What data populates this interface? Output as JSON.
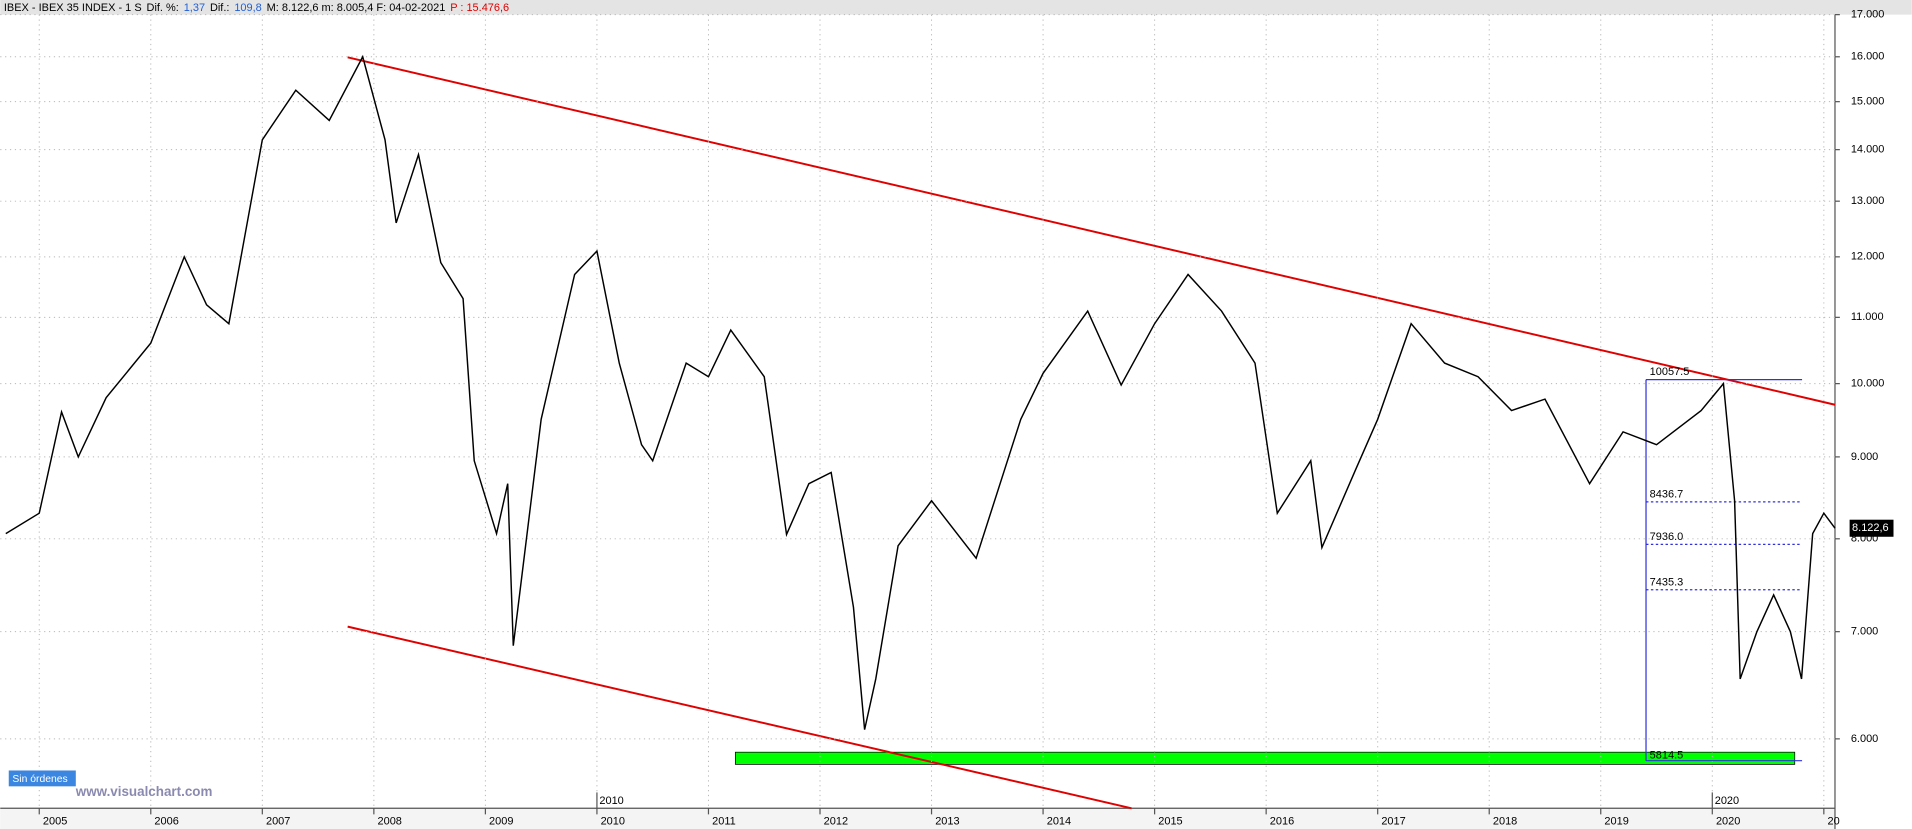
{
  "header": [
    {
      "text": "IBEX - IBEX 35 INDEX -  1 S",
      "color": "#000000"
    },
    {
      "text": "Dif. %:",
      "color": "#000000"
    },
    {
      "text": "1,37",
      "color": "#1f5fd6"
    },
    {
      "text": "Dif.:",
      "color": "#000000"
    },
    {
      "text": "109,8",
      "color": "#1f5fd6"
    },
    {
      "text": "M: 8.122,6  m: 8.005,4  F: 04-02-2021",
      "color": "#000000"
    },
    {
      "text": "P : 15.476,6",
      "color": "#e00000"
    }
  ],
  "orders_button": "Sin órdenes",
  "watermark": "www.visualchart.com",
  "chart_data": {
    "type": "line",
    "color": "#000000",
    "log_scale": true,
    "grid": true,
    "x": [
      2004.7,
      2005.0,
      2005.2,
      2005.35,
      2005.6,
      2006.0,
      2006.3,
      2006.5,
      2006.7,
      2007.0,
      2007.3,
      2007.6,
      2007.9,
      2008.1,
      2008.2,
      2008.4,
      2008.6,
      2008.8,
      2008.9,
      2009.1,
      2009.2,
      2009.25,
      2009.5,
      2009.8,
      2010.0,
      2010.2,
      2010.4,
      2010.5,
      2010.8,
      2011.0,
      2011.2,
      2011.5,
      2011.7,
      2011.9,
      2012.1,
      2012.3,
      2012.4,
      2012.5,
      2012.7,
      2013.0,
      2013.4,
      2013.8,
      2014.0,
      2014.4,
      2014.7,
      2015.0,
      2015.3,
      2015.6,
      2015.9,
      2016.1,
      2016.4,
      2016.5,
      2016.8,
      2017.0,
      2017.3,
      2017.6,
      2017.9,
      2018.2,
      2018.5,
      2018.9,
      2019.2,
      2019.5,
      2019.9,
      2020.1,
      2020.2,
      2020.25,
      2020.4,
      2020.55,
      2020.7,
      2020.8,
      2020.9,
      2021.0,
      2021.1
    ],
    "values": [
      8060,
      8300,
      9600,
      9000,
      9800,
      10600,
      12000,
      11200,
      10900,
      14200,
      15250,
      14600,
      16000,
      14200,
      12600,
      13900,
      11900,
      11300,
      8950,
      8060,
      8660,
      6860,
      9500,
      11700,
      12100,
      10300,
      9160,
      8950,
      10300,
      10100,
      10800,
      10100,
      8050,
      8660,
      8800,
      7250,
      6080,
      6540,
      7920,
      8450,
      7780,
      9500,
      10150,
      11100,
      9980,
      10900,
      11700,
      11100,
      10300,
      8300,
      8950,
      7900,
      8830,
      9500,
      10900,
      10300,
      10100,
      9620,
      9780,
      8660,
      9330,
      9160,
      9620,
      10000,
      8450,
      6540,
      7000,
      7380,
      7000,
      6540,
      8060,
      8300,
      8122.6
    ],
    "xlim": [
      2004.65,
      2021.1
    ],
    "xticks": [
      2005,
      2006,
      2007,
      2008,
      2009,
      2010,
      2011,
      2012,
      2013,
      2014,
      2015,
      2016,
      2017,
      2018,
      2019,
      2020,
      {
        "value": 2021,
        "label": "20"
      }
    ],
    "ylim": [
      5430,
      17000
    ],
    "yticks": [
      {
        "value": 6000,
        "label": "6.000"
      },
      {
        "value": 7000,
        "label": "7.000"
      },
      {
        "value": 8000,
        "label": "8.000"
      },
      {
        "value": 9000,
        "label": "9.000"
      },
      {
        "value": 10000,
        "label": "10.000"
      },
      {
        "value": 11000,
        "label": "11.000"
      },
      {
        "value": 12000,
        "label": "12.000"
      },
      {
        "value": 13000,
        "label": "13.000"
      },
      {
        "value": 14000,
        "label": "14.000"
      },
      {
        "value": 15000,
        "label": "15.000"
      },
      {
        "value": 16000,
        "label": "16.000"
      },
      {
        "value": 17000,
        "label": "17.000"
      }
    ],
    "last_price": {
      "value": 8122.6,
      "label": "8.122,6"
    },
    "period_labels": [
      2010,
      2020
    ],
    "range_high": {
      "value": 10057.5,
      "label": "10057.5"
    },
    "range_low": {
      "value": 5814.5,
      "label": "5814.5"
    },
    "levels": [
      {
        "value": 8436.7,
        "label": "8436.7"
      },
      {
        "value": 7936,
        "label": "7936.0"
      },
      {
        "value": 7435.3,
        "label": "7435.3"
      }
    ]
  }
}
